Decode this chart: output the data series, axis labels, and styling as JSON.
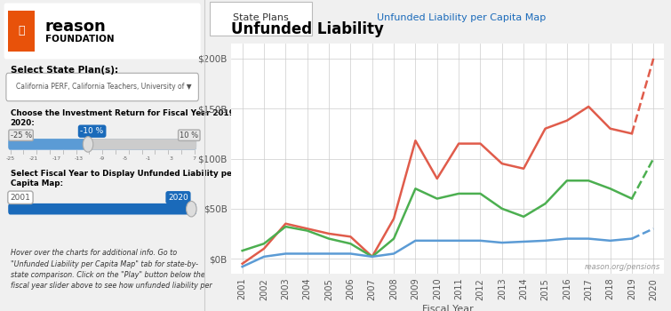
{
  "title": "Unfunded Liability",
  "xlabel": "Fiscal Year",
  "ylabel": "",
  "tab1": "State Plans",
  "tab2": "Unfunded Liability per Capita Map",
  "watermark": "reason.org/pensions",
  "years": [
    2001,
    2002,
    2003,
    2004,
    2005,
    2006,
    2007,
    2008,
    2009,
    2010,
    2011,
    2012,
    2013,
    2014,
    2015,
    2016,
    2017,
    2018,
    2019
  ],
  "years_proj": [
    2019,
    2020
  ],
  "red_solid": [
    -5,
    10,
    35,
    30,
    25,
    22,
    2,
    40,
    118,
    80,
    115,
    115,
    95,
    90,
    130,
    138,
    152,
    130,
    125
  ],
  "green_solid": [
    8,
    15,
    32,
    28,
    20,
    15,
    2,
    20,
    70,
    60,
    65,
    65,
    50,
    42,
    55,
    78,
    78,
    70,
    60
  ],
  "blue_solid": [
    -8,
    2,
    5,
    5,
    5,
    5,
    2,
    5,
    18,
    18,
    18,
    18,
    16,
    17,
    18,
    20,
    20,
    18,
    20
  ],
  "red_proj": [
    125,
    200
  ],
  "green_proj": [
    60,
    100
  ],
  "blue_proj": [
    20,
    30
  ],
  "red_color": "#e05c4b",
  "green_color": "#4caf50",
  "blue_color": "#5b9bd5",
  "bg_color": "#ffffff",
  "panel_bg": "#f5f5f5",
  "grid_color": "#cccccc",
  "yticks": [
    0,
    50,
    100,
    150,
    200
  ],
  "ylim": [
    -15,
    215
  ],
  "ylabels": [
    "$0B",
    "$50B",
    "$100B",
    "$150B",
    "$200B"
  ]
}
